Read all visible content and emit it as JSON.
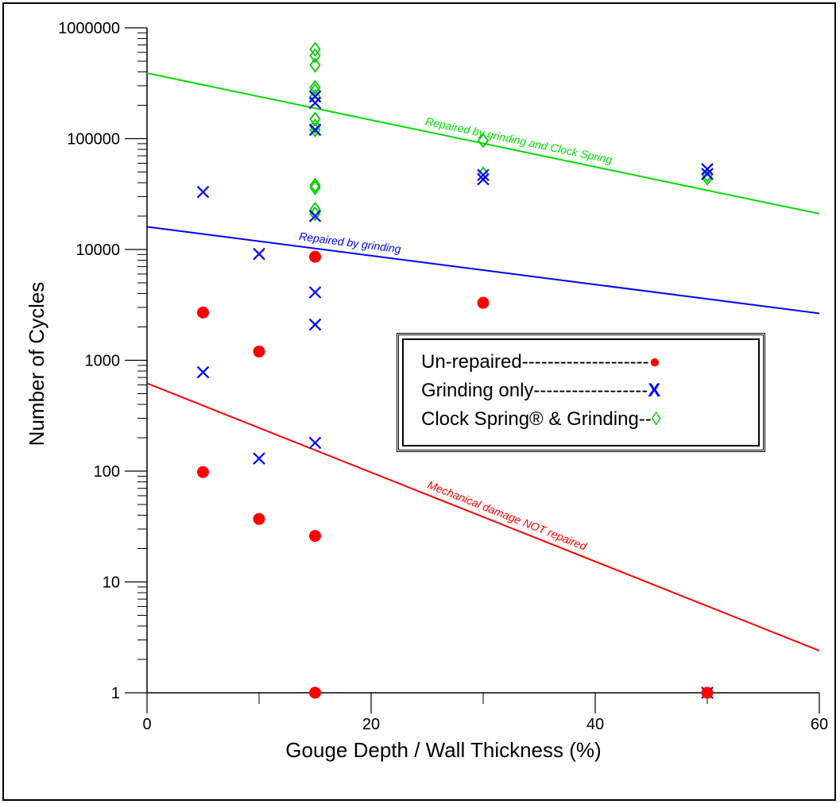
{
  "chart_data": {
    "type": "scatter",
    "xlabel": "Gouge Depth / Wall Thickness (%)",
    "ylabel": "Number of Cycles",
    "xlim": [
      0,
      60
    ],
    "ylim": [
      1,
      1000000
    ],
    "yscale": "log",
    "grid": false,
    "xticks": [
      "0",
      "20",
      "40",
      "60"
    ],
    "yticks": [
      "1",
      "10",
      "100",
      "1000",
      "10000",
      "100000",
      "1000000"
    ],
    "legend_position": "right",
    "series": [
      {
        "name": "Un-repaired",
        "legend_label": "Un-repaired--------------------",
        "legend_symbol": "●",
        "color": "#ff0000",
        "marker": "circle",
        "points": [
          [
            5,
            2700
          ],
          [
            5,
            98
          ],
          [
            10,
            1200
          ],
          [
            10,
            37
          ],
          [
            15,
            8600
          ],
          [
            15,
            26
          ],
          [
            15,
            1
          ],
          [
            30,
            3300
          ],
          [
            50,
            1
          ]
        ]
      },
      {
        "name": "Grinding only",
        "legend_label": "Grinding only------------------",
        "legend_symbol": "X",
        "color": "#0000ff",
        "marker": "x",
        "points": [
          [
            5,
            33000
          ],
          [
            5,
            780
          ],
          [
            10,
            9100
          ],
          [
            10,
            130
          ],
          [
            15,
            240000
          ],
          [
            15,
            210000
          ],
          [
            15,
            120000
          ],
          [
            15,
            20000
          ],
          [
            15,
            4100
          ],
          [
            15,
            2100
          ],
          [
            15,
            180
          ],
          [
            30,
            47000
          ],
          [
            30,
            43000
          ],
          [
            50,
            53000
          ],
          [
            50,
            48000
          ],
          [
            50,
            1
          ]
        ]
      },
      {
        "name": "Clock Spring® & Grinding",
        "legend_label": "Clock Spring® & Grinding--",
        "legend_symbol": "◊",
        "color": "#00cc00",
        "marker": "diamond",
        "points": [
          [
            15,
            640000
          ],
          [
            15,
            560000
          ],
          [
            15,
            460000
          ],
          [
            15,
            290000
          ],
          [
            15,
            270000
          ],
          [
            15,
            240000
          ],
          [
            15,
            150000
          ],
          [
            15,
            130000
          ],
          [
            15,
            120000
          ],
          [
            15,
            38000
          ],
          [
            15,
            36000
          ],
          [
            15,
            23000
          ],
          [
            15,
            21000
          ],
          [
            30,
            96000
          ],
          [
            30,
            48000
          ],
          [
            50,
            47000
          ],
          [
            50,
            44000
          ]
        ]
      }
    ],
    "fit_lines": [
      {
        "label": "Repaired by grinding and Clock Spring",
        "color": "#00dd00",
        "x": [
          0,
          60
        ],
        "y": [
          390000,
          21000
        ]
      },
      {
        "label": "Repaired by grinding",
        "color": "#0000ff",
        "x": [
          0,
          60
        ],
        "y": [
          16000,
          2650
        ]
      },
      {
        "label": "Mechanical damage NOT repaired",
        "color": "#ff0000",
        "x": [
          0,
          60
        ],
        "y": [
          620,
          2.4
        ]
      }
    ]
  }
}
